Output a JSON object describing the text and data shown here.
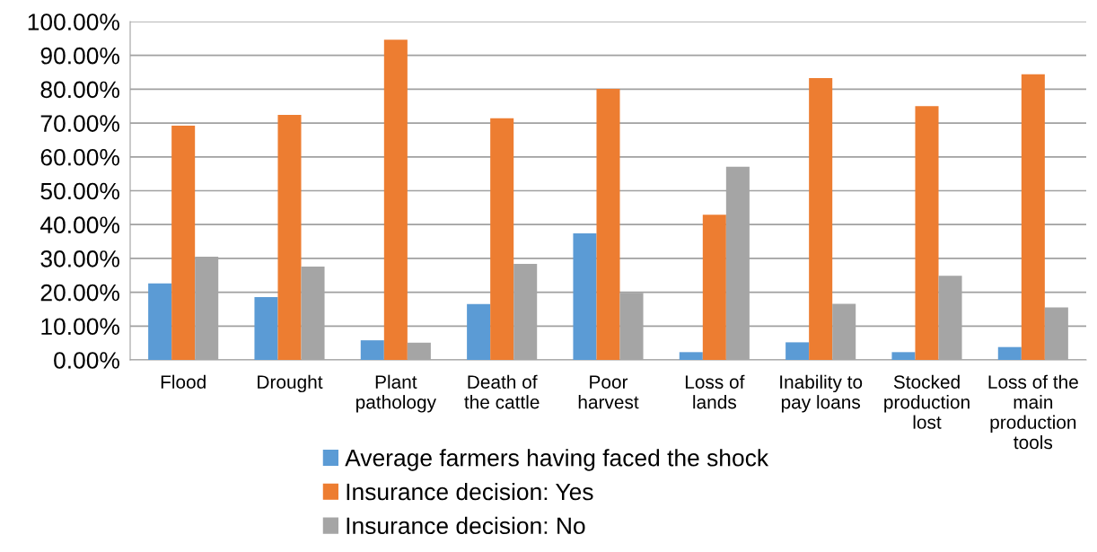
{
  "chart_data": {
    "type": "bar",
    "categories": [
      "Flood",
      "Drought",
      "Plant\npathology",
      "Death of\nthe cattle",
      "Poor\nharvest",
      "Loss of\nlands",
      "Inability to\npay loans",
      "Stocked\nproduction\nlost",
      "Loss of the\nmain\nproduction\ntools"
    ],
    "series": [
      {
        "name": "Average farmers having faced the shock",
        "color": "#5b9bd5",
        "values": [
          22.6,
          18.6,
          5.8,
          16.5,
          37.4,
          2.3,
          5.2,
          2.3,
          3.8
        ]
      },
      {
        "name": "Insurance decision: Yes",
        "color": "#ed7d31",
        "values": [
          69.2,
          72.4,
          94.6,
          71.4,
          80.1,
          42.9,
          83.3,
          75.0,
          84.4
        ]
      },
      {
        "name": "Insurance decision: No",
        "color": "#a5a5a5",
        "values": [
          30.5,
          27.6,
          5.1,
          28.4,
          19.8,
          57.1,
          16.6,
          24.9,
          15.5
        ]
      }
    ],
    "ylim": [
      0,
      100
    ],
    "yticks": [
      {
        "value": 0,
        "label": "0.00%"
      },
      {
        "value": 10,
        "label": "10.00%"
      },
      {
        "value": 20,
        "label": "20.00%"
      },
      {
        "value": 30,
        "label": "30.00%"
      },
      {
        "value": 40,
        "label": "40.00%"
      },
      {
        "value": 50,
        "label": "50.00%"
      },
      {
        "value": 60,
        "label": "60.00%"
      },
      {
        "value": 70,
        "label": "70.00%"
      },
      {
        "value": 80,
        "label": "80.00%"
      },
      {
        "value": 90,
        "label": "90.00%"
      },
      {
        "value": 100,
        "label": "100.00%"
      }
    ],
    "grid": "y",
    "legend": "bottom"
  }
}
